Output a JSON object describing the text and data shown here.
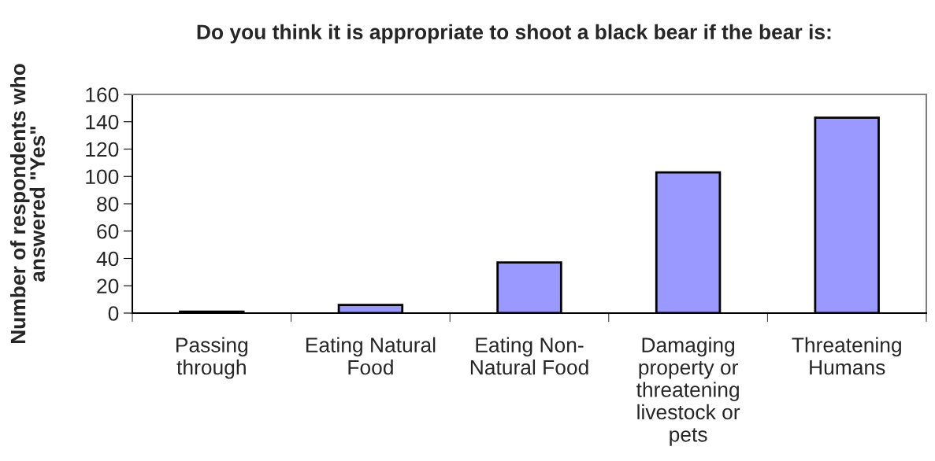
{
  "chart_data": {
    "type": "bar",
    "title": "Do you think it is appropriate to shoot a black bear if the bear is:",
    "ylabel": "Number of respondents who\nanswered \"Yes\"",
    "categories": [
      "Passing\nthrough",
      "Eating Natural\nFood",
      "Eating Non-\nNatural Food",
      "Damaging\nproperty or\nthreatening\nlivestock or\npets",
      "Threatening\nHumans"
    ],
    "values": [
      1,
      6,
      37,
      103,
      143
    ],
    "color": "#9999ff",
    "ylim": [
      0,
      160
    ],
    "yticks": [
      0,
      20,
      40,
      60,
      80,
      100,
      120,
      140,
      160
    ],
    "grid": false
  }
}
